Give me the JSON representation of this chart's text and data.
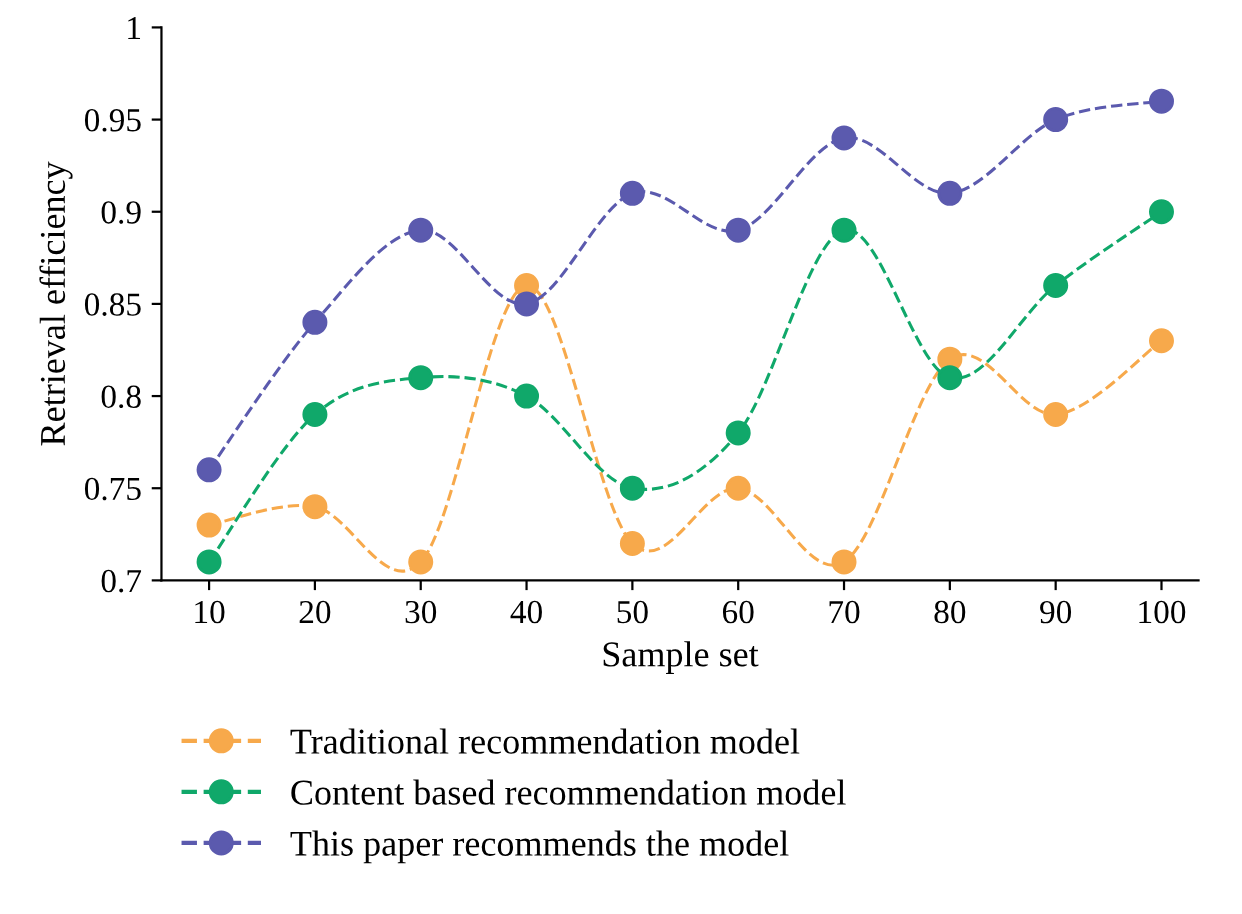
{
  "chart_data": {
    "type": "line",
    "xlabel": "Sample set",
    "ylabel": "Retrieval efficiency",
    "categories": [
      "10",
      "20",
      "30",
      "40",
      "50",
      "60",
      "70",
      "80",
      "90",
      "100"
    ],
    "series": [
      {
        "name": "Traditional recommendation model",
        "color": "#f7a94b",
        "values": [
          0.73,
          0.74,
          0.71,
          0.86,
          0.72,
          0.75,
          0.71,
          0.82,
          0.79,
          0.83
        ]
      },
      {
        "name": "Content based recommendation model",
        "color": "#10a86a",
        "values": [
          0.71,
          0.79,
          0.81,
          0.8,
          0.75,
          0.78,
          0.89,
          0.81,
          0.86,
          0.9
        ]
      },
      {
        "name": "This paper recommends the model",
        "color": "#5b5aae",
        "values": [
          0.76,
          0.84,
          0.89,
          0.85,
          0.91,
          0.89,
          0.94,
          0.91,
          0.95,
          0.96
        ]
      }
    ],
    "ylim": [
      0.7,
      1
    ],
    "yticks": [
      0.7,
      0.75,
      0.8,
      0.85,
      0.9,
      0.95,
      1
    ],
    "grid": false,
    "legend": "bottom",
    "marker": "circle",
    "line_style": "dashed"
  }
}
